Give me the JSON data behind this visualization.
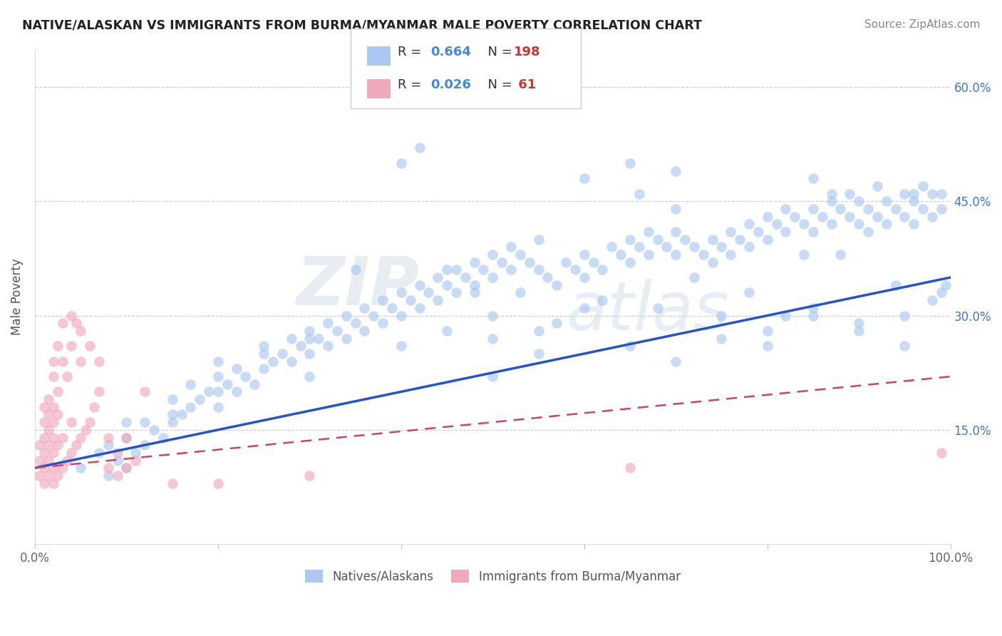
{
  "title": "NATIVE/ALASKAN VS IMMIGRANTS FROM BURMA/MYANMAR MALE POVERTY CORRELATION CHART",
  "source": "Source: ZipAtlas.com",
  "ylabel": "Male Poverty",
  "xlim": [
    0,
    1.0
  ],
  "ylim": [
    0.0,
    0.65
  ],
  "xtick_values": [
    0.0,
    1.0
  ],
  "xticklabels": [
    "0.0%",
    "100.0%"
  ],
  "ytick_values": [
    0.15,
    0.3,
    0.45,
    0.6
  ],
  "ytick_labels": [
    "15.0%",
    "30.0%",
    "45.0%",
    "60.0%"
  ],
  "blue_color": "#aac8f0",
  "pink_color": "#f0a8bc",
  "blue_line_color": "#2255cc",
  "pink_line_color": "#cc4466",
  "watermark_zip": "ZIP",
  "watermark_atlas": "atlas",
  "blue_trend": [
    0.1,
    0.35
  ],
  "pink_trend": [
    0.1,
    0.22
  ],
  "scatter_blue": [
    [
      0.05,
      0.1
    ],
    [
      0.07,
      0.12
    ],
    [
      0.08,
      0.09
    ],
    [
      0.08,
      0.13
    ],
    [
      0.09,
      0.11
    ],
    [
      0.1,
      0.1
    ],
    [
      0.1,
      0.14
    ],
    [
      0.11,
      0.12
    ],
    [
      0.12,
      0.13
    ],
    [
      0.12,
      0.16
    ],
    [
      0.13,
      0.15
    ],
    [
      0.14,
      0.14
    ],
    [
      0.15,
      0.16
    ],
    [
      0.15,
      0.19
    ],
    [
      0.16,
      0.17
    ],
    [
      0.17,
      0.18
    ],
    [
      0.17,
      0.21
    ],
    [
      0.18,
      0.19
    ],
    [
      0.19,
      0.2
    ],
    [
      0.2,
      0.18
    ],
    [
      0.2,
      0.22
    ],
    [
      0.21,
      0.21
    ],
    [
      0.22,
      0.2
    ],
    [
      0.22,
      0.23
    ],
    [
      0.23,
      0.22
    ],
    [
      0.24,
      0.21
    ],
    [
      0.25,
      0.23
    ],
    [
      0.25,
      0.26
    ],
    [
      0.26,
      0.24
    ],
    [
      0.27,
      0.25
    ],
    [
      0.28,
      0.24
    ],
    [
      0.28,
      0.27
    ],
    [
      0.29,
      0.26
    ],
    [
      0.3,
      0.25
    ],
    [
      0.3,
      0.28
    ],
    [
      0.31,
      0.27
    ],
    [
      0.32,
      0.26
    ],
    [
      0.32,
      0.29
    ],
    [
      0.33,
      0.28
    ],
    [
      0.34,
      0.27
    ],
    [
      0.34,
      0.3
    ],
    [
      0.35,
      0.29
    ],
    [
      0.36,
      0.28
    ],
    [
      0.36,
      0.31
    ],
    [
      0.37,
      0.3
    ],
    [
      0.38,
      0.29
    ],
    [
      0.38,
      0.32
    ],
    [
      0.39,
      0.31
    ],
    [
      0.4,
      0.3
    ],
    [
      0.4,
      0.33
    ],
    [
      0.41,
      0.32
    ],
    [
      0.42,
      0.31
    ],
    [
      0.42,
      0.34
    ],
    [
      0.43,
      0.33
    ],
    [
      0.44,
      0.32
    ],
    [
      0.44,
      0.35
    ],
    [
      0.45,
      0.34
    ],
    [
      0.46,
      0.33
    ],
    [
      0.46,
      0.36
    ],
    [
      0.47,
      0.35
    ],
    [
      0.48,
      0.34
    ],
    [
      0.48,
      0.37
    ],
    [
      0.49,
      0.36
    ],
    [
      0.5,
      0.35
    ],
    [
      0.5,
      0.38
    ],
    [
      0.51,
      0.37
    ],
    [
      0.52,
      0.36
    ],
    [
      0.52,
      0.39
    ],
    [
      0.53,
      0.38
    ],
    [
      0.54,
      0.37
    ],
    [
      0.55,
      0.36
    ],
    [
      0.55,
      0.28
    ],
    [
      0.56,
      0.35
    ],
    [
      0.57,
      0.34
    ],
    [
      0.58,
      0.37
    ],
    [
      0.59,
      0.36
    ],
    [
      0.6,
      0.35
    ],
    [
      0.6,
      0.38
    ],
    [
      0.61,
      0.37
    ],
    [
      0.62,
      0.36
    ],
    [
      0.63,
      0.39
    ],
    [
      0.64,
      0.38
    ],
    [
      0.65,
      0.37
    ],
    [
      0.65,
      0.4
    ],
    [
      0.66,
      0.39
    ],
    [
      0.67,
      0.38
    ],
    [
      0.67,
      0.41
    ],
    [
      0.68,
      0.4
    ],
    [
      0.69,
      0.39
    ],
    [
      0.7,
      0.38
    ],
    [
      0.7,
      0.41
    ],
    [
      0.71,
      0.4
    ],
    [
      0.72,
      0.35
    ],
    [
      0.72,
      0.39
    ],
    [
      0.73,
      0.38
    ],
    [
      0.74,
      0.37
    ],
    [
      0.74,
      0.4
    ],
    [
      0.75,
      0.39
    ],
    [
      0.76,
      0.38
    ],
    [
      0.76,
      0.41
    ],
    [
      0.77,
      0.4
    ],
    [
      0.78,
      0.39
    ],
    [
      0.78,
      0.42
    ],
    [
      0.79,
      0.41
    ],
    [
      0.8,
      0.4
    ],
    [
      0.8,
      0.43
    ],
    [
      0.81,
      0.42
    ],
    [
      0.82,
      0.41
    ],
    [
      0.82,
      0.44
    ],
    [
      0.83,
      0.43
    ],
    [
      0.84,
      0.42
    ],
    [
      0.84,
      0.38
    ],
    [
      0.85,
      0.41
    ],
    [
      0.85,
      0.44
    ],
    [
      0.86,
      0.43
    ],
    [
      0.87,
      0.42
    ],
    [
      0.87,
      0.45
    ],
    [
      0.88,
      0.44
    ],
    [
      0.88,
      0.38
    ],
    [
      0.89,
      0.43
    ],
    [
      0.89,
      0.46
    ],
    [
      0.9,
      0.45
    ],
    [
      0.9,
      0.42
    ],
    [
      0.91,
      0.41
    ],
    [
      0.91,
      0.44
    ],
    [
      0.92,
      0.43
    ],
    [
      0.93,
      0.42
    ],
    [
      0.93,
      0.45
    ],
    [
      0.94,
      0.44
    ],
    [
      0.94,
      0.34
    ],
    [
      0.95,
      0.43
    ],
    [
      0.95,
      0.46
    ],
    [
      0.96,
      0.45
    ],
    [
      0.96,
      0.42
    ],
    [
      0.97,
      0.44
    ],
    [
      0.97,
      0.47
    ],
    [
      0.98,
      0.43
    ],
    [
      0.98,
      0.32
    ],
    [
      0.99,
      0.44
    ],
    [
      0.99,
      0.46
    ],
    [
      0.995,
      0.34
    ],
    [
      0.6,
      0.48
    ],
    [
      0.65,
      0.5
    ],
    [
      0.66,
      0.46
    ],
    [
      0.7,
      0.49
    ],
    [
      0.4,
      0.5
    ],
    [
      0.45,
      0.36
    ],
    [
      0.48,
      0.33
    ],
    [
      0.5,
      0.27
    ],
    [
      0.53,
      0.33
    ],
    [
      0.55,
      0.4
    ],
    [
      0.57,
      0.29
    ],
    [
      0.62,
      0.32
    ],
    [
      0.68,
      0.31
    ],
    [
      0.75,
      0.3
    ],
    [
      0.8,
      0.28
    ],
    [
      0.85,
      0.31
    ],
    [
      0.9,
      0.29
    ],
    [
      0.95,
      0.3
    ],
    [
      0.99,
      0.33
    ],
    [
      0.35,
      0.36
    ],
    [
      0.45,
      0.28
    ],
    [
      0.55,
      0.25
    ],
    [
      0.65,
      0.26
    ],
    [
      0.7,
      0.24
    ],
    [
      0.75,
      0.27
    ],
    [
      0.8,
      0.26
    ],
    [
      0.85,
      0.3
    ],
    [
      0.9,
      0.28
    ],
    [
      0.95,
      0.26
    ],
    [
      0.42,
      0.52
    ],
    [
      0.5,
      0.3
    ],
    [
      0.3,
      0.27
    ],
    [
      0.25,
      0.25
    ],
    [
      0.2,
      0.24
    ],
    [
      0.85,
      0.48
    ],
    [
      0.87,
      0.46
    ],
    [
      0.92,
      0.47
    ],
    [
      0.96,
      0.46
    ],
    [
      0.98,
      0.46
    ],
    [
      0.82,
      0.3
    ],
    [
      0.78,
      0.33
    ],
    [
      0.7,
      0.44
    ],
    [
      0.6,
      0.31
    ],
    [
      0.5,
      0.22
    ],
    [
      0.4,
      0.26
    ],
    [
      0.3,
      0.22
    ],
    [
      0.2,
      0.2
    ],
    [
      0.15,
      0.17
    ],
    [
      0.1,
      0.16
    ]
  ],
  "scatter_pink": [
    [
      0.005,
      0.09
    ],
    [
      0.005,
      0.11
    ],
    [
      0.005,
      0.13
    ],
    [
      0.01,
      0.08
    ],
    [
      0.01,
      0.1
    ],
    [
      0.01,
      0.12
    ],
    [
      0.01,
      0.14
    ],
    [
      0.01,
      0.16
    ],
    [
      0.01,
      0.18
    ],
    [
      0.015,
      0.09
    ],
    [
      0.015,
      0.11
    ],
    [
      0.015,
      0.13
    ],
    [
      0.015,
      0.15
    ],
    [
      0.015,
      0.17
    ],
    [
      0.015,
      0.19
    ],
    [
      0.02,
      0.08
    ],
    [
      0.02,
      0.1
    ],
    [
      0.02,
      0.12
    ],
    [
      0.02,
      0.14
    ],
    [
      0.02,
      0.16
    ],
    [
      0.02,
      0.18
    ],
    [
      0.02,
      0.22
    ],
    [
      0.02,
      0.24
    ],
    [
      0.025,
      0.09
    ],
    [
      0.025,
      0.13
    ],
    [
      0.025,
      0.17
    ],
    [
      0.025,
      0.2
    ],
    [
      0.025,
      0.26
    ],
    [
      0.03,
      0.1
    ],
    [
      0.03,
      0.14
    ],
    [
      0.03,
      0.24
    ],
    [
      0.03,
      0.29
    ],
    [
      0.035,
      0.11
    ],
    [
      0.035,
      0.22
    ],
    [
      0.04,
      0.12
    ],
    [
      0.04,
      0.16
    ],
    [
      0.04,
      0.26
    ],
    [
      0.04,
      0.3
    ],
    [
      0.045,
      0.13
    ],
    [
      0.045,
      0.29
    ],
    [
      0.05,
      0.14
    ],
    [
      0.05,
      0.24
    ],
    [
      0.05,
      0.28
    ],
    [
      0.055,
      0.15
    ],
    [
      0.06,
      0.16
    ],
    [
      0.06,
      0.26
    ],
    [
      0.065,
      0.18
    ],
    [
      0.07,
      0.2
    ],
    [
      0.07,
      0.24
    ],
    [
      0.08,
      0.1
    ],
    [
      0.08,
      0.14
    ],
    [
      0.09,
      0.09
    ],
    [
      0.09,
      0.12
    ],
    [
      0.1,
      0.1
    ],
    [
      0.1,
      0.14
    ],
    [
      0.11,
      0.11
    ],
    [
      0.12,
      0.2
    ],
    [
      0.15,
      0.08
    ],
    [
      0.2,
      0.08
    ],
    [
      0.3,
      0.09
    ],
    [
      0.65,
      0.1
    ],
    [
      0.99,
      0.12
    ]
  ]
}
